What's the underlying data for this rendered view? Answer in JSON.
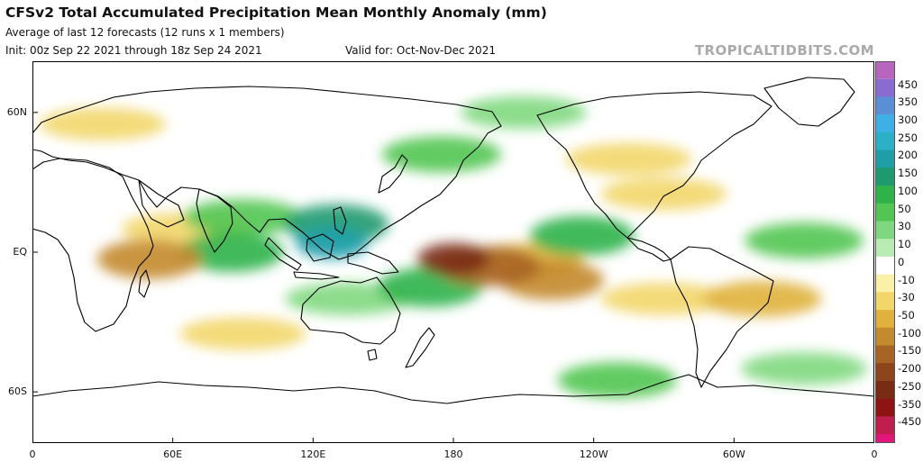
{
  "header": {
    "title": "CFSv2 Total Accumulated Precipitation Mean Monthly Anomaly (mm)",
    "subtitle": "Average of last 12 forecasts (12 runs x 1 members)",
    "init": "Init: 00z Sep 22 2021 through 18z Sep 24 2021",
    "valid": "Valid for: Oct-Nov-Dec 2021",
    "brand": "TROPICALTIDBITS.COM"
  },
  "axes": {
    "y_ticks": [
      {
        "label": "60N",
        "lat": 60
      },
      {
        "label": "EQ",
        "lat": 0
      },
      {
        "label": "60S",
        "lat": -60
      }
    ],
    "x_ticks": [
      {
        "label": "0",
        "lon": 0
      },
      {
        "label": "60E",
        "lon": 60
      },
      {
        "label": "120E",
        "lon": 120
      },
      {
        "label": "180",
        "lon": 180
      },
      {
        "label": "120W",
        "lon": 240
      },
      {
        "label": "60W",
        "lon": 300
      },
      {
        "label": "0",
        "lon": 360
      }
    ],
    "lat_range": [
      -82,
      82
    ],
    "lon_range": [
      0,
      360
    ]
  },
  "colorbar": {
    "levels": [
      {
        "label": "450",
        "color": "#8a6bd1"
      },
      {
        "label": "350",
        "color": "#5a8fd6"
      },
      {
        "label": "300",
        "color": "#3fb0e6"
      },
      {
        "label": "250",
        "color": "#2cb0c8"
      },
      {
        "label": "200",
        "color": "#1f9ea8"
      },
      {
        "label": "150",
        "color": "#1e9a6e"
      },
      {
        "label": "100",
        "color": "#2fb24a"
      },
      {
        "label": "50",
        "color": "#52c552"
      },
      {
        "label": "30",
        "color": "#7fd87f"
      },
      {
        "label": "10",
        "color": "#b9ecb3"
      },
      {
        "label": "0",
        "color": "#ffffff"
      },
      {
        "label": "-10",
        "color": "#fbf0a8"
      },
      {
        "label": "-30",
        "color": "#f2d669"
      },
      {
        "label": "-50",
        "color": "#e0b13c"
      },
      {
        "label": "-100",
        "color": "#c48a2e"
      },
      {
        "label": "-150",
        "color": "#a86425"
      },
      {
        "label": "-200",
        "color": "#8e451c"
      },
      {
        "label": "-250",
        "color": "#7a2b14"
      },
      {
        "label": "-350",
        "color": "#8e1414"
      },
      {
        "label": "-450",
        "color": "#c01e4e"
      }
    ],
    "top_color": "#b865c0",
    "bottom_color": "#e0167a"
  },
  "anomaly_regions": [
    {
      "name": "central-pacific-dry-core",
      "lon": 180,
      "lat": -3,
      "value": -250
    },
    {
      "name": "central-pacific-dry",
      "lon": 195,
      "lat": -6,
      "value": -150
    },
    {
      "name": "pacific-dry-tongue",
      "lon": 222,
      "lat": -12,
      "value": -100
    },
    {
      "name": "equatorial-dry-belt",
      "lon": 210,
      "lat": -4,
      "value": -50
    },
    {
      "name": "maritime-continent-wet",
      "lon": 128,
      "lat": 4,
      "value": 200
    },
    {
      "name": "philippines-wet",
      "lon": 130,
      "lat": 12,
      "value": 150
    },
    {
      "name": "indian-ocean-wet",
      "lon": 85,
      "lat": 0,
      "value": 100
    },
    {
      "name": "bay-of-bengal-wet",
      "lon": 90,
      "lat": 15,
      "value": 50
    },
    {
      "name": "spcz-wet",
      "lon": 170,
      "lat": -15,
      "value": 100
    },
    {
      "name": "itcz-wet",
      "lon": 235,
      "lat": 7,
      "value": 100
    },
    {
      "name": "north-pacific-wet",
      "lon": 175,
      "lat": 42,
      "value": 50
    },
    {
      "name": "alaska-wet",
      "lon": 210,
      "lat": 60,
      "value": 30
    },
    {
      "name": "southern-ocean-wet",
      "lon": 250,
      "lat": -55,
      "value": 50
    },
    {
      "name": "south-atlantic-wet",
      "lon": 330,
      "lat": -50,
      "value": 30
    },
    {
      "name": "east-africa-dry",
      "lon": 50,
      "lat": -3,
      "value": -100
    },
    {
      "name": "arabian-sea-dry",
      "lon": 65,
      "lat": 10,
      "value": -30
    },
    {
      "name": "europe-dry",
      "lon": 30,
      "lat": 55,
      "value": -30
    },
    {
      "name": "north-america-dry",
      "lon": 255,
      "lat": 40,
      "value": -30
    },
    {
      "name": "southeast-pacific-dry",
      "lon": 270,
      "lat": -20,
      "value": -30
    },
    {
      "name": "south-indian-dry",
      "lon": 90,
      "lat": -35,
      "value": -30
    },
    {
      "name": "brazil-dry",
      "lon": 312,
      "lat": -20,
      "value": -50
    },
    {
      "name": "atlantic-itcz-wet",
      "lon": 330,
      "lat": 5,
      "value": 50
    },
    {
      "name": "gulf-of-mexico-dry",
      "lon": 270,
      "lat": 25,
      "value": -30
    },
    {
      "name": "australia-wet",
      "lon": 135,
      "lat": -20,
      "value": 30
    }
  ]
}
